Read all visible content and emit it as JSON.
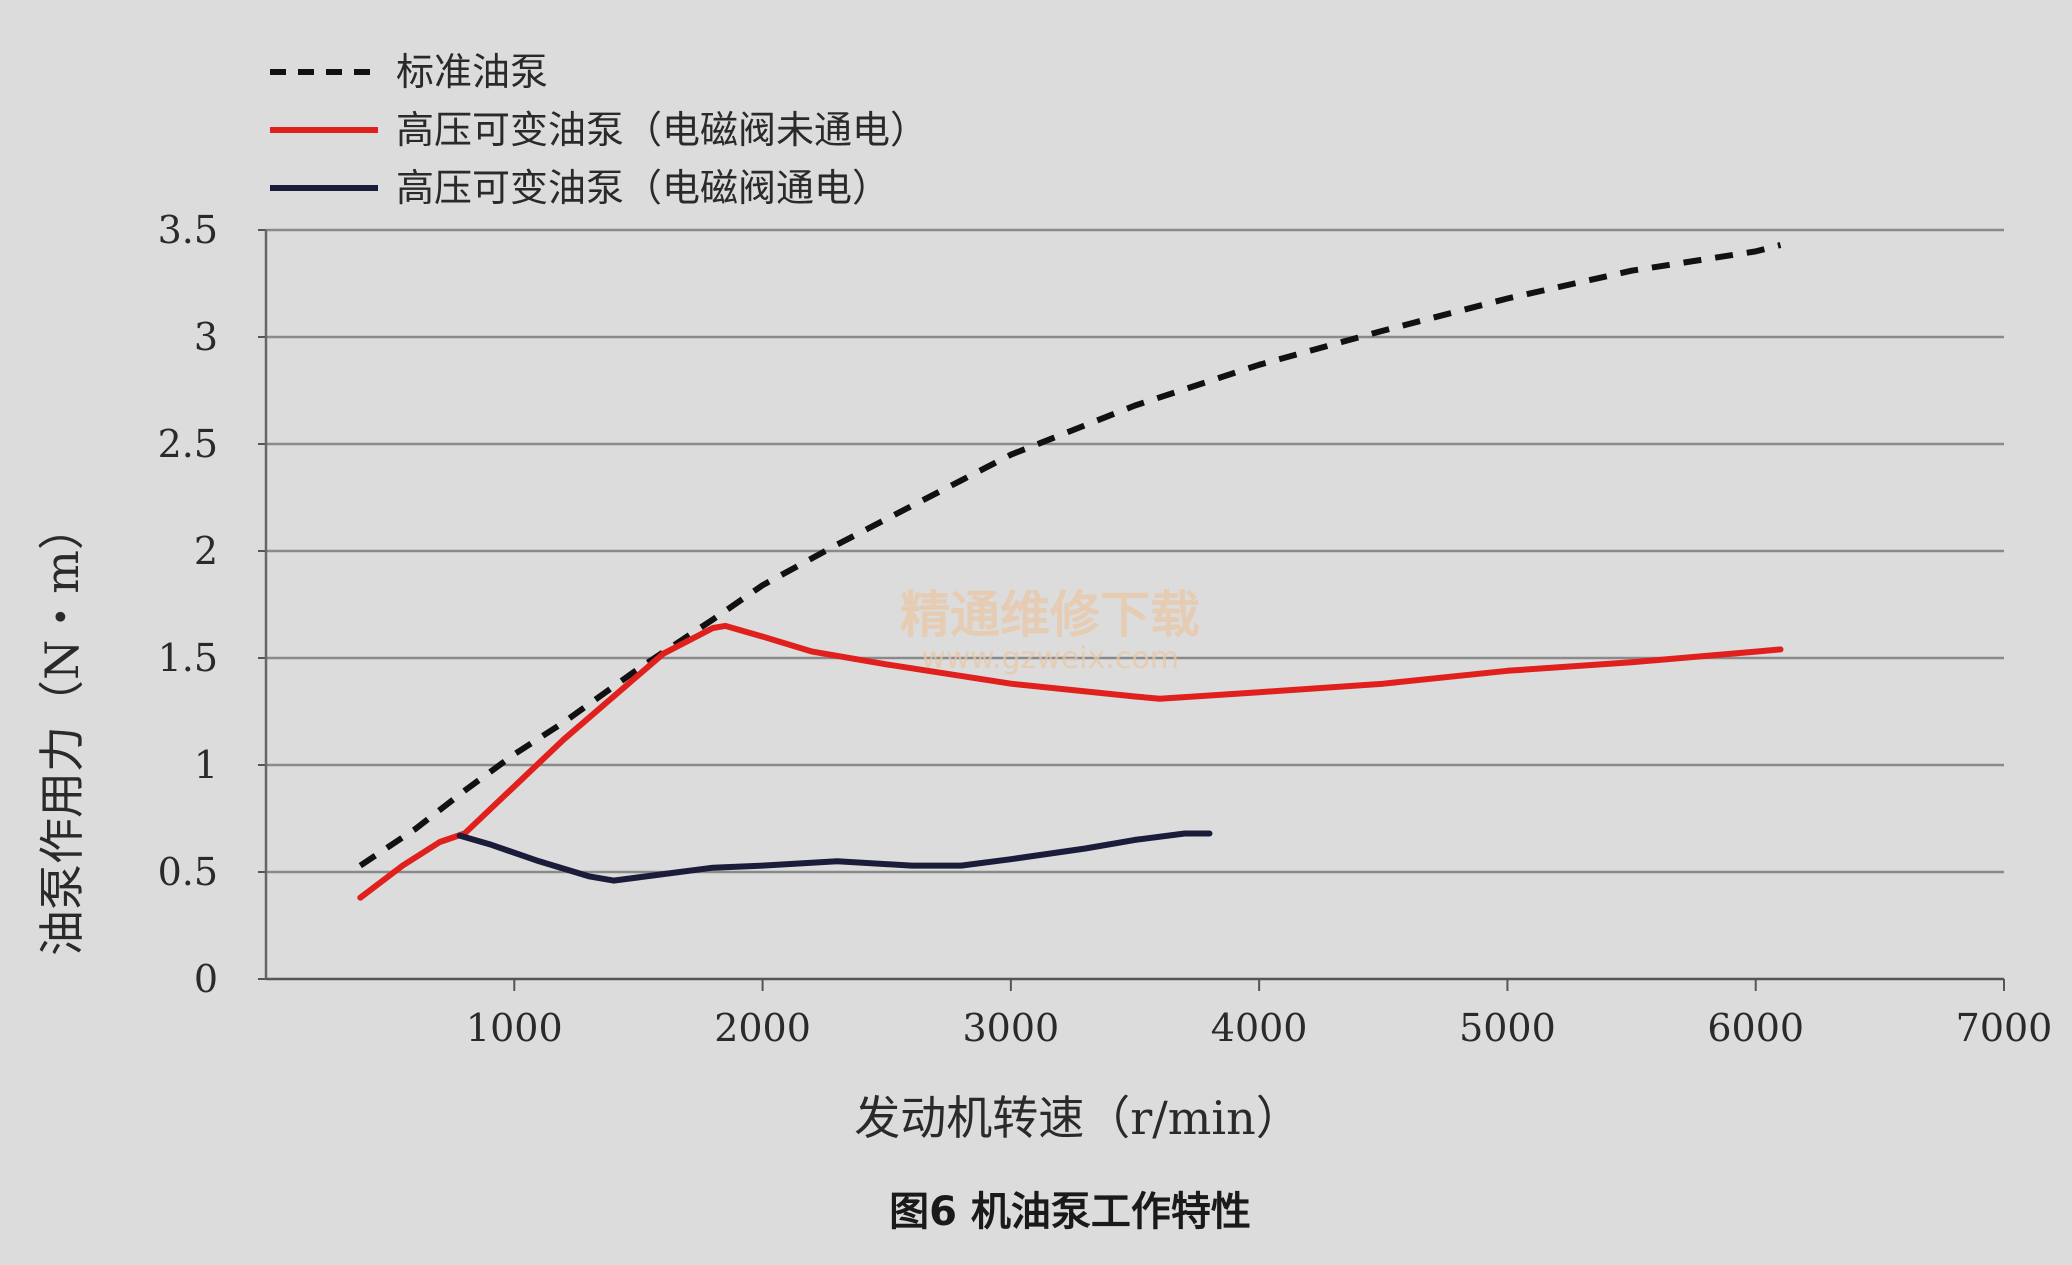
{
  "chart_data": {
    "type": "line",
    "xlabel": "发动机转速（r/min）",
    "ylabel": "油泵作用力（N・m）",
    "caption": "图6 机油泵工作特性",
    "xlim": [
      0,
      7000
    ],
    "ylim": [
      0,
      3.5
    ],
    "x_ticks": [
      "1000",
      "2000",
      "3000",
      "4000",
      "5000",
      "6000",
      "7000"
    ],
    "y_ticks": [
      "0",
      "0.5",
      "1",
      "1.5",
      "2",
      "2.5",
      "3",
      "3.5"
    ],
    "grid": "horizontal",
    "legend_position": "top-left",
    "series": [
      {
        "name": "标准油泵",
        "color": "#111111",
        "style": "dashed",
        "points": [
          [
            380,
            0.53
          ],
          [
            600,
            0.7
          ],
          [
            800,
            0.88
          ],
          [
            1000,
            1.05
          ],
          [
            1200,
            1.2
          ],
          [
            1500,
            1.45
          ],
          [
            1800,
            1.68
          ],
          [
            2000,
            1.84
          ],
          [
            2300,
            2.03
          ],
          [
            2500,
            2.15
          ],
          [
            2800,
            2.33
          ],
          [
            3000,
            2.45
          ],
          [
            3500,
            2.68
          ],
          [
            4000,
            2.87
          ],
          [
            4500,
            3.03
          ],
          [
            5000,
            3.18
          ],
          [
            5500,
            3.31
          ],
          [
            6000,
            3.4
          ],
          [
            6100,
            3.43
          ]
        ]
      },
      {
        "name": "高压可变油泵（电磁阀未通电）",
        "color": "#e0201c",
        "style": "solid",
        "points": [
          [
            380,
            0.38
          ],
          [
            550,
            0.53
          ],
          [
            700,
            0.64
          ],
          [
            800,
            0.68
          ],
          [
            1000,
            0.9
          ],
          [
            1200,
            1.12
          ],
          [
            1400,
            1.32
          ],
          [
            1600,
            1.52
          ],
          [
            1800,
            1.64
          ],
          [
            1850,
            1.65
          ],
          [
            2000,
            1.6
          ],
          [
            2200,
            1.53
          ],
          [
            2500,
            1.47
          ],
          [
            3000,
            1.38
          ],
          [
            3500,
            1.32
          ],
          [
            3600,
            1.31
          ],
          [
            4000,
            1.34
          ],
          [
            4500,
            1.38
          ],
          [
            5000,
            1.44
          ],
          [
            5500,
            1.48
          ],
          [
            6000,
            1.53
          ],
          [
            6100,
            1.54
          ]
        ]
      },
      {
        "name": "高压可变油泵（电磁阀通电）",
        "color": "#1b1b3a",
        "style": "solid",
        "points": [
          [
            780,
            0.67
          ],
          [
            900,
            0.63
          ],
          [
            1100,
            0.55
          ],
          [
            1300,
            0.48
          ],
          [
            1400,
            0.46
          ],
          [
            1600,
            0.49
          ],
          [
            1800,
            0.52
          ],
          [
            2000,
            0.53
          ],
          [
            2300,
            0.55
          ],
          [
            2600,
            0.53
          ],
          [
            2800,
            0.53
          ],
          [
            3000,
            0.56
          ],
          [
            3300,
            0.61
          ],
          [
            3500,
            0.65
          ],
          [
            3700,
            0.68
          ],
          [
            3800,
            0.68
          ]
        ]
      }
    ]
  },
  "watermark": {
    "text": "精通维修下载",
    "url": "www.gzweix.com"
  }
}
